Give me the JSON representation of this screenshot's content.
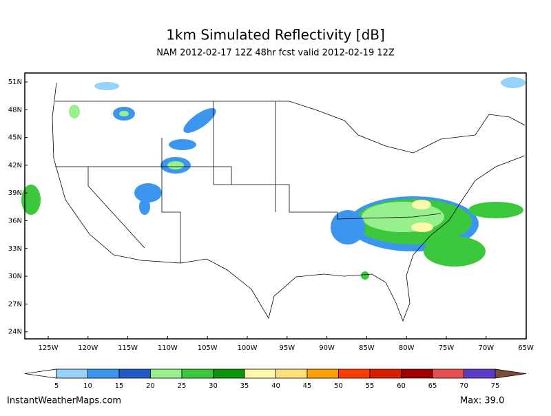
{
  "header": {
    "title": "1km Simulated Reflectivity [dB]",
    "subtitle": "NAM 2012-02-17 12Z 48hr fcst valid 2012-02-19 12Z"
  },
  "map": {
    "lat_labels": [
      "51N",
      "48N",
      "45N",
      "42N",
      "39N",
      "36N",
      "33N",
      "30N",
      "27N",
      "24N"
    ],
    "lon_labels": [
      "125W",
      "120W",
      "115W",
      "110W",
      "105W",
      "100W",
      "95W",
      "90W",
      "85W",
      "80W",
      "75W",
      "70W",
      "65W"
    ]
  },
  "colorbar": {
    "levels": [
      5,
      10,
      15,
      20,
      25,
      30,
      35,
      40,
      45,
      50,
      55,
      60,
      65,
      70,
      75
    ],
    "colors": [
      "#ffffff",
      "#96d2fa",
      "#3c96f0",
      "#1e5ac8",
      "#96f08c",
      "#3cc83c",
      "#0a960a",
      "#fffaaa",
      "#ffe078",
      "#ffa000",
      "#ff3c00",
      "#dc1e00",
      "#a00000",
      "#e65050",
      "#5a3cc8",
      "#7a4a3a"
    ]
  },
  "footer": {
    "source": "InstantWeatherMaps.com",
    "max": "Max:  39.0"
  }
}
